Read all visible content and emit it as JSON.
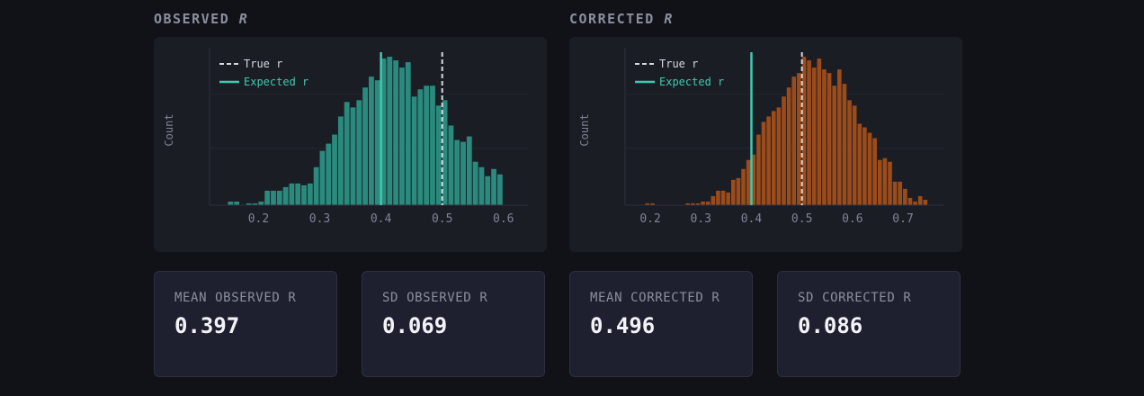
{
  "observed": {
    "title_main": "OBSERVED",
    "title_var": "R"
  },
  "corrected": {
    "title_main": "CORRECTED",
    "title_var": "R"
  },
  "stats": [
    {
      "label": "MEAN OBSERVED R",
      "value": "0.397"
    },
    {
      "label": "SD OBSERVED R",
      "value": "0.069"
    },
    {
      "label": "MEAN CORRECTED R",
      "value": "0.496"
    },
    {
      "label": "SD CORRECTED R",
      "value": "0.086"
    }
  ],
  "chart_data": [
    {
      "type": "bar",
      "ylabel": "Count",
      "xlabel": "",
      "xlim": [
        0.12,
        0.64
      ],
      "xticks": [
        "0.2",
        "0.3",
        "0.4",
        "0.5",
        "0.6"
      ],
      "bin_width": 0.01,
      "bar_color": "#2a8a7d",
      "bins": [
        0.155,
        0.165,
        0.185,
        0.195,
        0.205,
        0.215,
        0.225,
        0.235,
        0.245,
        0.255,
        0.265,
        0.275,
        0.285,
        0.295,
        0.305,
        0.315,
        0.325,
        0.335,
        0.345,
        0.355,
        0.365,
        0.375,
        0.385,
        0.395,
        0.405,
        0.415,
        0.425,
        0.435,
        0.445,
        0.455,
        0.465,
        0.475,
        0.485,
        0.495,
        0.505,
        0.515,
        0.525,
        0.535,
        0.545,
        0.555,
        0.565,
        0.575,
        0.585,
        0.595
      ],
      "counts": [
        2,
        2,
        1,
        1,
        2,
        8,
        8,
        8,
        10,
        12,
        12,
        11,
        12,
        21,
        30,
        34,
        39,
        49,
        57,
        54,
        58,
        65,
        71,
        69,
        81,
        82,
        80,
        76,
        79,
        60,
        64,
        66,
        66,
        55,
        58,
        44,
        36,
        35,
        38,
        24,
        21,
        16,
        20,
        17
      ],
      "legend": [
        {
          "label": "True r",
          "style": "dashed",
          "color": "#d8dae3"
        },
        {
          "label": "Expected r",
          "style": "solid",
          "color": "#3ec9b0"
        }
      ],
      "reference_lines": {
        "true_r": 0.5,
        "expected_r": 0.4
      },
      "ylim": [
        0,
        85
      ]
    },
    {
      "type": "bar",
      "ylabel": "Count",
      "xlabel": "",
      "xlim": [
        0.15,
        0.78
      ],
      "xticks": [
        "0.2",
        "0.3",
        "0.4",
        "0.5",
        "0.6",
        "0.7"
      ],
      "bin_width": 0.01,
      "bar_color": "#9c4b1a",
      "bins": [
        0.195,
        0.205,
        0.275,
        0.285,
        0.295,
        0.305,
        0.315,
        0.325,
        0.335,
        0.345,
        0.355,
        0.365,
        0.375,
        0.385,
        0.395,
        0.405,
        0.415,
        0.425,
        0.435,
        0.445,
        0.455,
        0.465,
        0.475,
        0.485,
        0.495,
        0.505,
        0.515,
        0.525,
        0.535,
        0.545,
        0.555,
        0.565,
        0.575,
        0.585,
        0.595,
        0.605,
        0.615,
        0.625,
        0.635,
        0.645,
        0.655,
        0.665,
        0.675,
        0.685,
        0.695,
        0.705,
        0.715,
        0.725,
        0.735,
        0.745
      ],
      "counts": [
        1,
        1,
        1,
        1,
        1,
        2,
        2,
        5,
        8,
        8,
        7,
        14,
        15,
        20,
        25,
        28,
        39,
        46,
        49,
        52,
        54,
        60,
        65,
        71,
        73,
        82,
        80,
        76,
        81,
        75,
        73,
        66,
        75,
        67,
        58,
        55,
        45,
        43,
        40,
        37,
        25,
        26,
        24,
        13,
        13,
        9,
        4,
        2,
        5,
        3
      ],
      "legend": [
        {
          "label": "True r",
          "style": "dashed",
          "color": "#d8dae3"
        },
        {
          "label": "Expected r",
          "style": "solid",
          "color": "#3ec9b0"
        }
      ],
      "reference_lines": {
        "true_r": 0.5,
        "expected_r": 0.4
      },
      "ylim": [
        0,
        85
      ]
    }
  ]
}
